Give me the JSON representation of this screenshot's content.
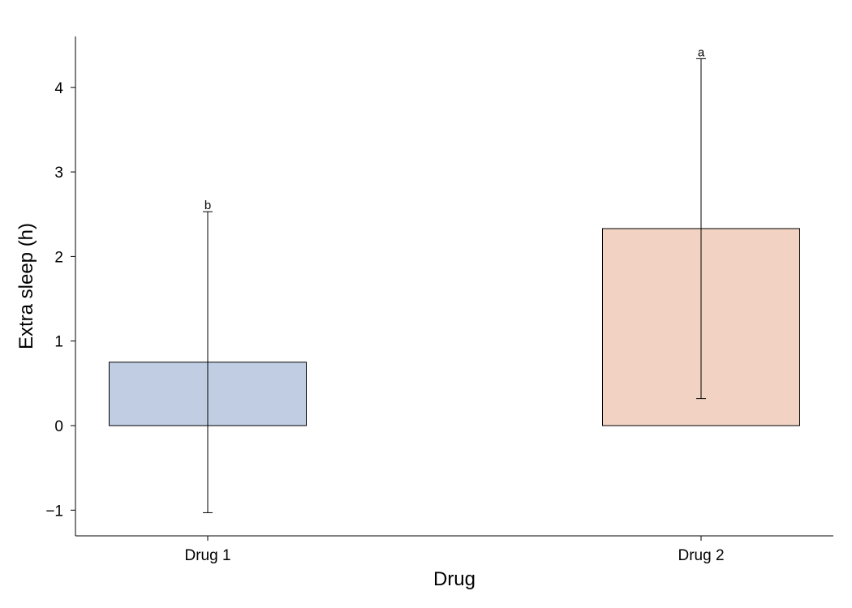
{
  "chart_data": {
    "type": "bar",
    "title": "",
    "xlabel": "Drug",
    "ylabel": "Extra sleep (h)",
    "categories": [
      "Drug 1",
      "Drug 2"
    ],
    "values": [
      0.75,
      2.33
    ],
    "error_bars": [
      {
        "low": -1.03,
        "high": 2.53
      },
      {
        "low": 0.32,
        "high": 4.34
      }
    ],
    "significance_labels": [
      "b",
      "a"
    ],
    "colors": [
      "#c0cde3",
      "#f2d3c3"
    ],
    "bar_edge_color": "#000000",
    "ylim": [
      -1.3,
      4.6
    ],
    "yticks": [
      -1,
      0,
      1,
      2,
      3,
      4
    ],
    "ytick_labels": [
      "−1",
      "0",
      "1",
      "2",
      "3",
      "4"
    ],
    "grid": false,
    "legend": "none"
  }
}
